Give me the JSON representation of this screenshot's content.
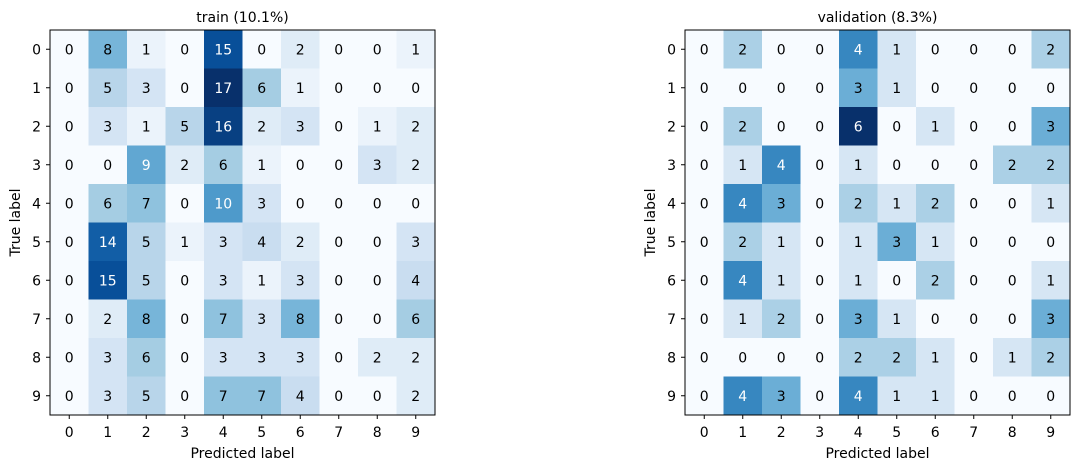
{
  "chart_data": [
    {
      "type": "heatmap",
      "title": "train (10.1%)",
      "xlabel": "Predicted label",
      "ylabel": "True label",
      "x_ticks": [
        "0",
        "1",
        "2",
        "3",
        "4",
        "5",
        "6",
        "7",
        "8",
        "9"
      ],
      "y_ticks": [
        "0",
        "1",
        "2",
        "3",
        "4",
        "5",
        "6",
        "7",
        "8",
        "9"
      ],
      "colormap": "Blues",
      "vmin": 0,
      "vmax": 17,
      "matrix": [
        [
          0,
          8,
          1,
          0,
          15,
          0,
          2,
          0,
          0,
          1
        ],
        [
          0,
          5,
          3,
          0,
          17,
          6,
          1,
          0,
          0,
          0
        ],
        [
          0,
          3,
          1,
          5,
          16,
          2,
          3,
          0,
          1,
          2
        ],
        [
          0,
          0,
          9,
          2,
          6,
          1,
          0,
          0,
          3,
          2
        ],
        [
          0,
          6,
          7,
          0,
          10,
          3,
          0,
          0,
          0,
          0
        ],
        [
          0,
          14,
          5,
          1,
          3,
          4,
          2,
          0,
          0,
          3
        ],
        [
          0,
          15,
          5,
          0,
          3,
          1,
          3,
          0,
          0,
          4
        ],
        [
          0,
          2,
          8,
          0,
          7,
          3,
          8,
          0,
          0,
          6
        ],
        [
          0,
          3,
          6,
          0,
          3,
          3,
          3,
          0,
          2,
          2
        ],
        [
          0,
          3,
          5,
          0,
          7,
          7,
          4,
          0,
          0,
          2
        ]
      ]
    },
    {
      "type": "heatmap",
      "title": "validation (8.3%)",
      "xlabel": "Predicted label",
      "ylabel": "True label",
      "x_ticks": [
        "0",
        "1",
        "2",
        "3",
        "4",
        "5",
        "6",
        "7",
        "8",
        "9"
      ],
      "y_ticks": [
        "0",
        "1",
        "2",
        "3",
        "4",
        "5",
        "6",
        "7",
        "8",
        "9"
      ],
      "colormap": "Blues",
      "vmin": 0,
      "vmax": 6,
      "matrix": [
        [
          0,
          2,
          0,
          0,
          4,
          1,
          0,
          0,
          0,
          2
        ],
        [
          0,
          0,
          0,
          0,
          3,
          1,
          0,
          0,
          0,
          0
        ],
        [
          0,
          2,
          0,
          0,
          6,
          0,
          1,
          0,
          0,
          3
        ],
        [
          0,
          1,
          4,
          0,
          1,
          0,
          0,
          0,
          2,
          2
        ],
        [
          0,
          4,
          3,
          0,
          2,
          1,
          2,
          0,
          0,
          1
        ],
        [
          0,
          2,
          1,
          0,
          1,
          3,
          1,
          0,
          0,
          0
        ],
        [
          0,
          4,
          1,
          0,
          1,
          0,
          2,
          0,
          0,
          1
        ],
        [
          0,
          1,
          2,
          0,
          3,
          1,
          0,
          0,
          0,
          3
        ],
        [
          0,
          0,
          0,
          0,
          2,
          2,
          1,
          0,
          1,
          2
        ],
        [
          0,
          4,
          3,
          0,
          4,
          1,
          1,
          0,
          0,
          0
        ]
      ]
    }
  ]
}
